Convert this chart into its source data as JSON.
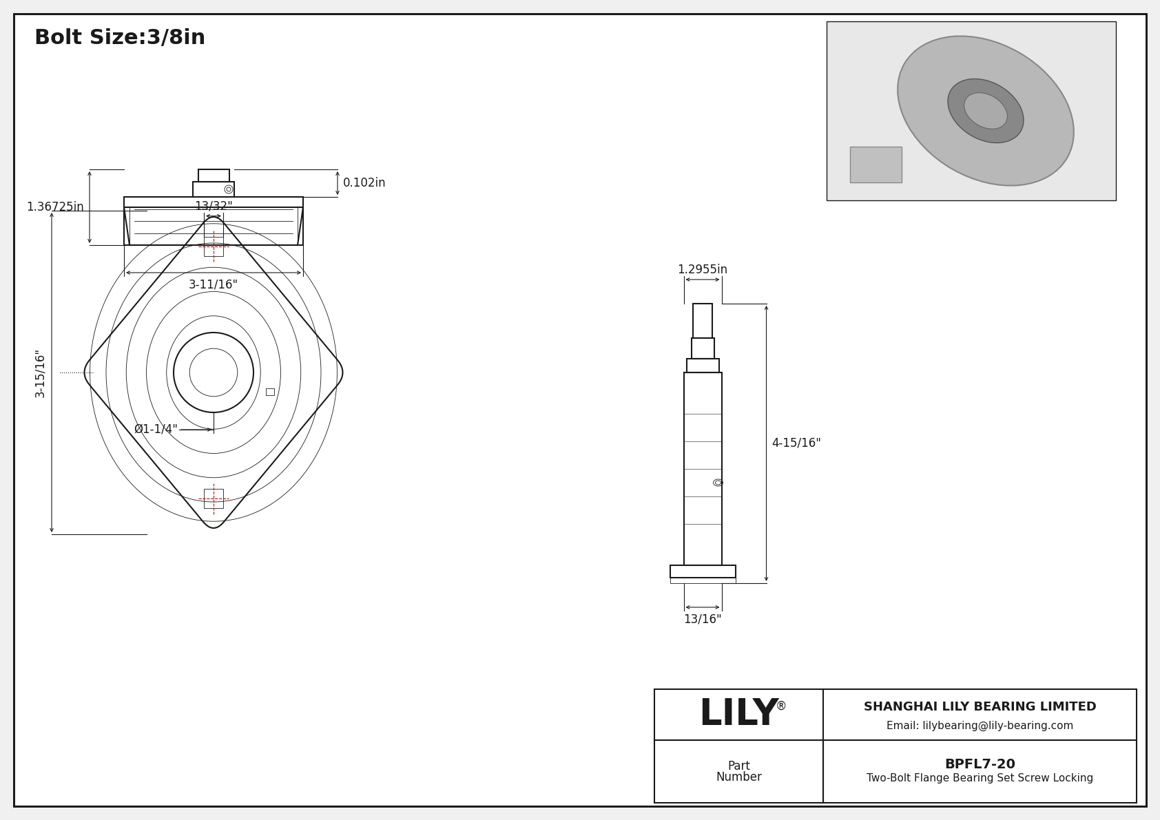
{
  "bg_color": "#f0f0f0",
  "drawing_bg": "#ffffff",
  "line_color": "#1a1a1a",
  "dim_color": "#1a1a1a",
  "red_color": "#cc0000",
  "title_text": "Bolt Size:3/8in",
  "title_fontsize": 22,
  "dim_fontsize": 12,
  "company_name": "SHANGHAI LILY BEARING LIMITED",
  "company_email": "Email: lilybearing@lily-bearing.com",
  "part_number": "BPFL7-20",
  "part_desc": "Two-Bolt Flange Bearing Set Screw Locking",
  "lily_text": "LILY",
  "dim_13_32": "13/32\"",
  "dim_3_15_16": "3-15/16\"",
  "dim_1_1_4": "Ø1-1/4\"",
  "dim_1_2955": "1.2955in",
  "dim_4_15_16": "4-15/16\"",
  "dim_13_16": "13/16\"",
  "dim_0102": "0.102in",
  "dim_136725": "1.36725in",
  "dim_3_11_16": "3-11/16\""
}
